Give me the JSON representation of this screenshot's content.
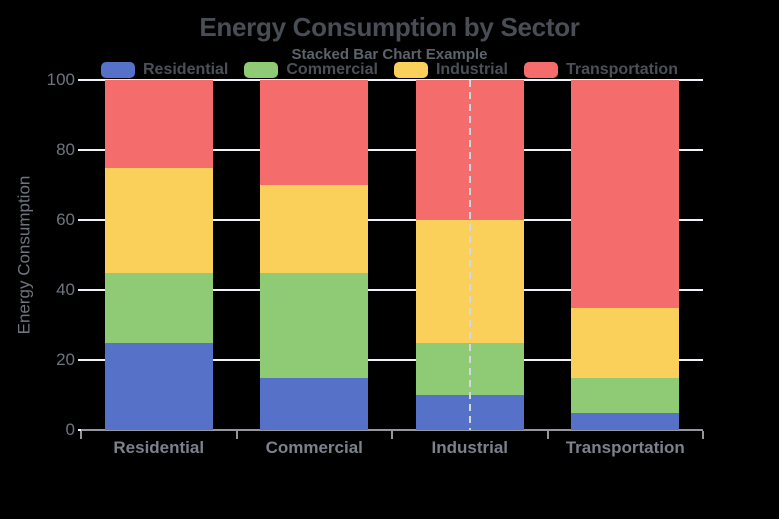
{
  "chart_data": {
    "type": "bar",
    "stacked": true,
    "title": "Energy Consumption by Sector",
    "subtitle": "Stacked Bar Chart Example",
    "ylabel": "Energy Consumption",
    "xlabel": "",
    "categories": [
      "Residential",
      "Commercial",
      "Industrial",
      "Transportation"
    ],
    "series": [
      {
        "name": "Residential",
        "color": "#5671C8",
        "values": [
          25,
          15,
          10,
          5
        ]
      },
      {
        "name": "Commercial",
        "color": "#8FCB74",
        "values": [
          20,
          30,
          15,
          10
        ]
      },
      {
        "name": "Industrial",
        "color": "#FBD05A",
        "values": [
          30,
          25,
          35,
          20
        ]
      },
      {
        "name": "Transportation",
        "color": "#F56C6C",
        "values": [
          25,
          30,
          40,
          65
        ]
      }
    ],
    "ylim": [
      0,
      100
    ],
    "yticks": [
      0,
      20,
      40,
      60,
      80,
      100
    ],
    "grid": true,
    "legend_position": "top",
    "annotations": [
      {
        "type": "vline",
        "style": "dashed",
        "category": "Industrial",
        "color": "#D3D7DE"
      }
    ]
  },
  "theme": {
    "background": "#000000",
    "title_color": "#484D56",
    "subtitle_color": "#5D626B",
    "legend_text_color": "#4B5058",
    "tick_label_color": "#6F747E",
    "axis_label_color": "#7C828C",
    "grid_color": "#EFF2F7",
    "axis_line_color": "#94979C"
  }
}
